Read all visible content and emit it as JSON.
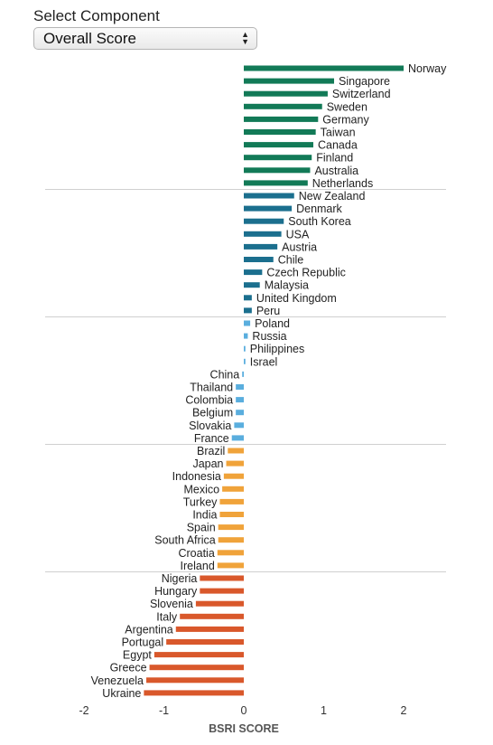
{
  "selector": {
    "label": "Select Component",
    "value": "Overall Score",
    "arrow_up_icon": "triangle-up",
    "arrow_down_icon": "triangle-down"
  },
  "chart_data": {
    "type": "bar",
    "orientation": "horizontal",
    "xlabel": "BSRI SCORE",
    "ylabel": "",
    "xlim": [
      -2,
      2.5
    ],
    "xticks": [
      -2,
      -1,
      0,
      1,
      2
    ],
    "grid": "horizontal separators between groups",
    "group_colors": [
      "#127a57",
      "#1b6f8e",
      "#5aaede",
      "#f0a33a",
      "#d9582b"
    ],
    "categories": [
      "Norway",
      "Singapore",
      "Switzerland",
      "Sweden",
      "Germany",
      "Taiwan",
      "Canada",
      "Finland",
      "Australia",
      "Netherlands",
      "New Zealand",
      "Denmark",
      "South Korea",
      "USA",
      "Austria",
      "Chile",
      "Czech Republic",
      "Malaysia",
      "United Kingdom",
      "Peru",
      "Poland",
      "Russia",
      "Philippines",
      "Israel",
      "China",
      "Thailand",
      "Colombia",
      "Belgium",
      "Slovakia",
      "France",
      "Brazil",
      "Japan",
      "Indonesia",
      "Mexico",
      "Turkey",
      "India",
      "Spain",
      "South Africa",
      "Croatia",
      "Ireland",
      "Nigeria",
      "Hungary",
      "Slovenia",
      "Italy",
      "Argentina",
      "Portugal",
      "Egypt",
      "Greece",
      "Venezuela",
      "Ukraine"
    ],
    "values": [
      2.0,
      1.13,
      1.05,
      0.98,
      0.93,
      0.9,
      0.87,
      0.85,
      0.83,
      0.8,
      0.63,
      0.6,
      0.5,
      0.47,
      0.42,
      0.37,
      0.23,
      0.2,
      0.1,
      0.1,
      0.08,
      0.05,
      0.02,
      0.02,
      -0.02,
      -0.1,
      -0.1,
      -0.1,
      -0.12,
      -0.15,
      -0.2,
      -0.22,
      -0.25,
      -0.27,
      -0.3,
      -0.3,
      -0.32,
      -0.32,
      -0.33,
      -0.33,
      -0.55,
      -0.55,
      -0.6,
      -0.8,
      -0.85,
      -0.97,
      -1.12,
      -1.18,
      -1.22,
      -1.25
    ],
    "groups": [
      0,
      0,
      0,
      0,
      0,
      0,
      0,
      0,
      0,
      0,
      1,
      1,
      1,
      1,
      1,
      1,
      1,
      1,
      1,
      1,
      2,
      2,
      2,
      2,
      2,
      2,
      2,
      2,
      2,
      2,
      3,
      3,
      3,
      3,
      3,
      3,
      3,
      3,
      3,
      3,
      4,
      4,
      4,
      4,
      4,
      4,
      4,
      4,
      4,
      4
    ]
  }
}
